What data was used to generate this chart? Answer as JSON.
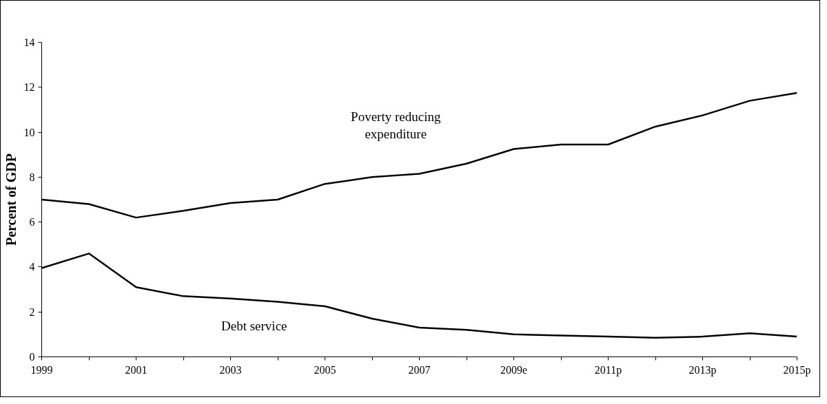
{
  "chart_data": {
    "type": "line",
    "ylabel": "Percent of GDP",
    "categories": [
      "1999",
      null,
      "2001",
      null,
      "2003",
      null,
      "2005",
      null,
      "2007",
      null,
      "2009e",
      null,
      "2011p",
      null,
      "2013p",
      null,
      "2015p"
    ],
    "ylim": [
      0,
      14
    ],
    "yticks": [
      0,
      2,
      4,
      6,
      8,
      10,
      12,
      14
    ],
    "grid": false,
    "marker": "none",
    "line_style": "solid",
    "series": [
      {
        "name": "Poverty reducing\nexpenditure",
        "color": "#000000",
        "values": [
          7.0,
          6.8,
          6.2,
          6.5,
          6.85,
          7.0,
          7.7,
          8.0,
          8.15,
          8.6,
          9.25,
          9.45,
          9.45,
          10.25,
          10.75,
          11.4,
          11.75
        ]
      },
      {
        "name": "Debt service",
        "color": "#000000",
        "values": [
          3.95,
          4.6,
          3.1,
          2.7,
          2.6,
          2.45,
          2.25,
          1.7,
          1.3,
          1.2,
          1.0,
          0.95,
          0.9,
          0.85,
          0.9,
          1.05,
          0.9
        ]
      }
    ]
  }
}
